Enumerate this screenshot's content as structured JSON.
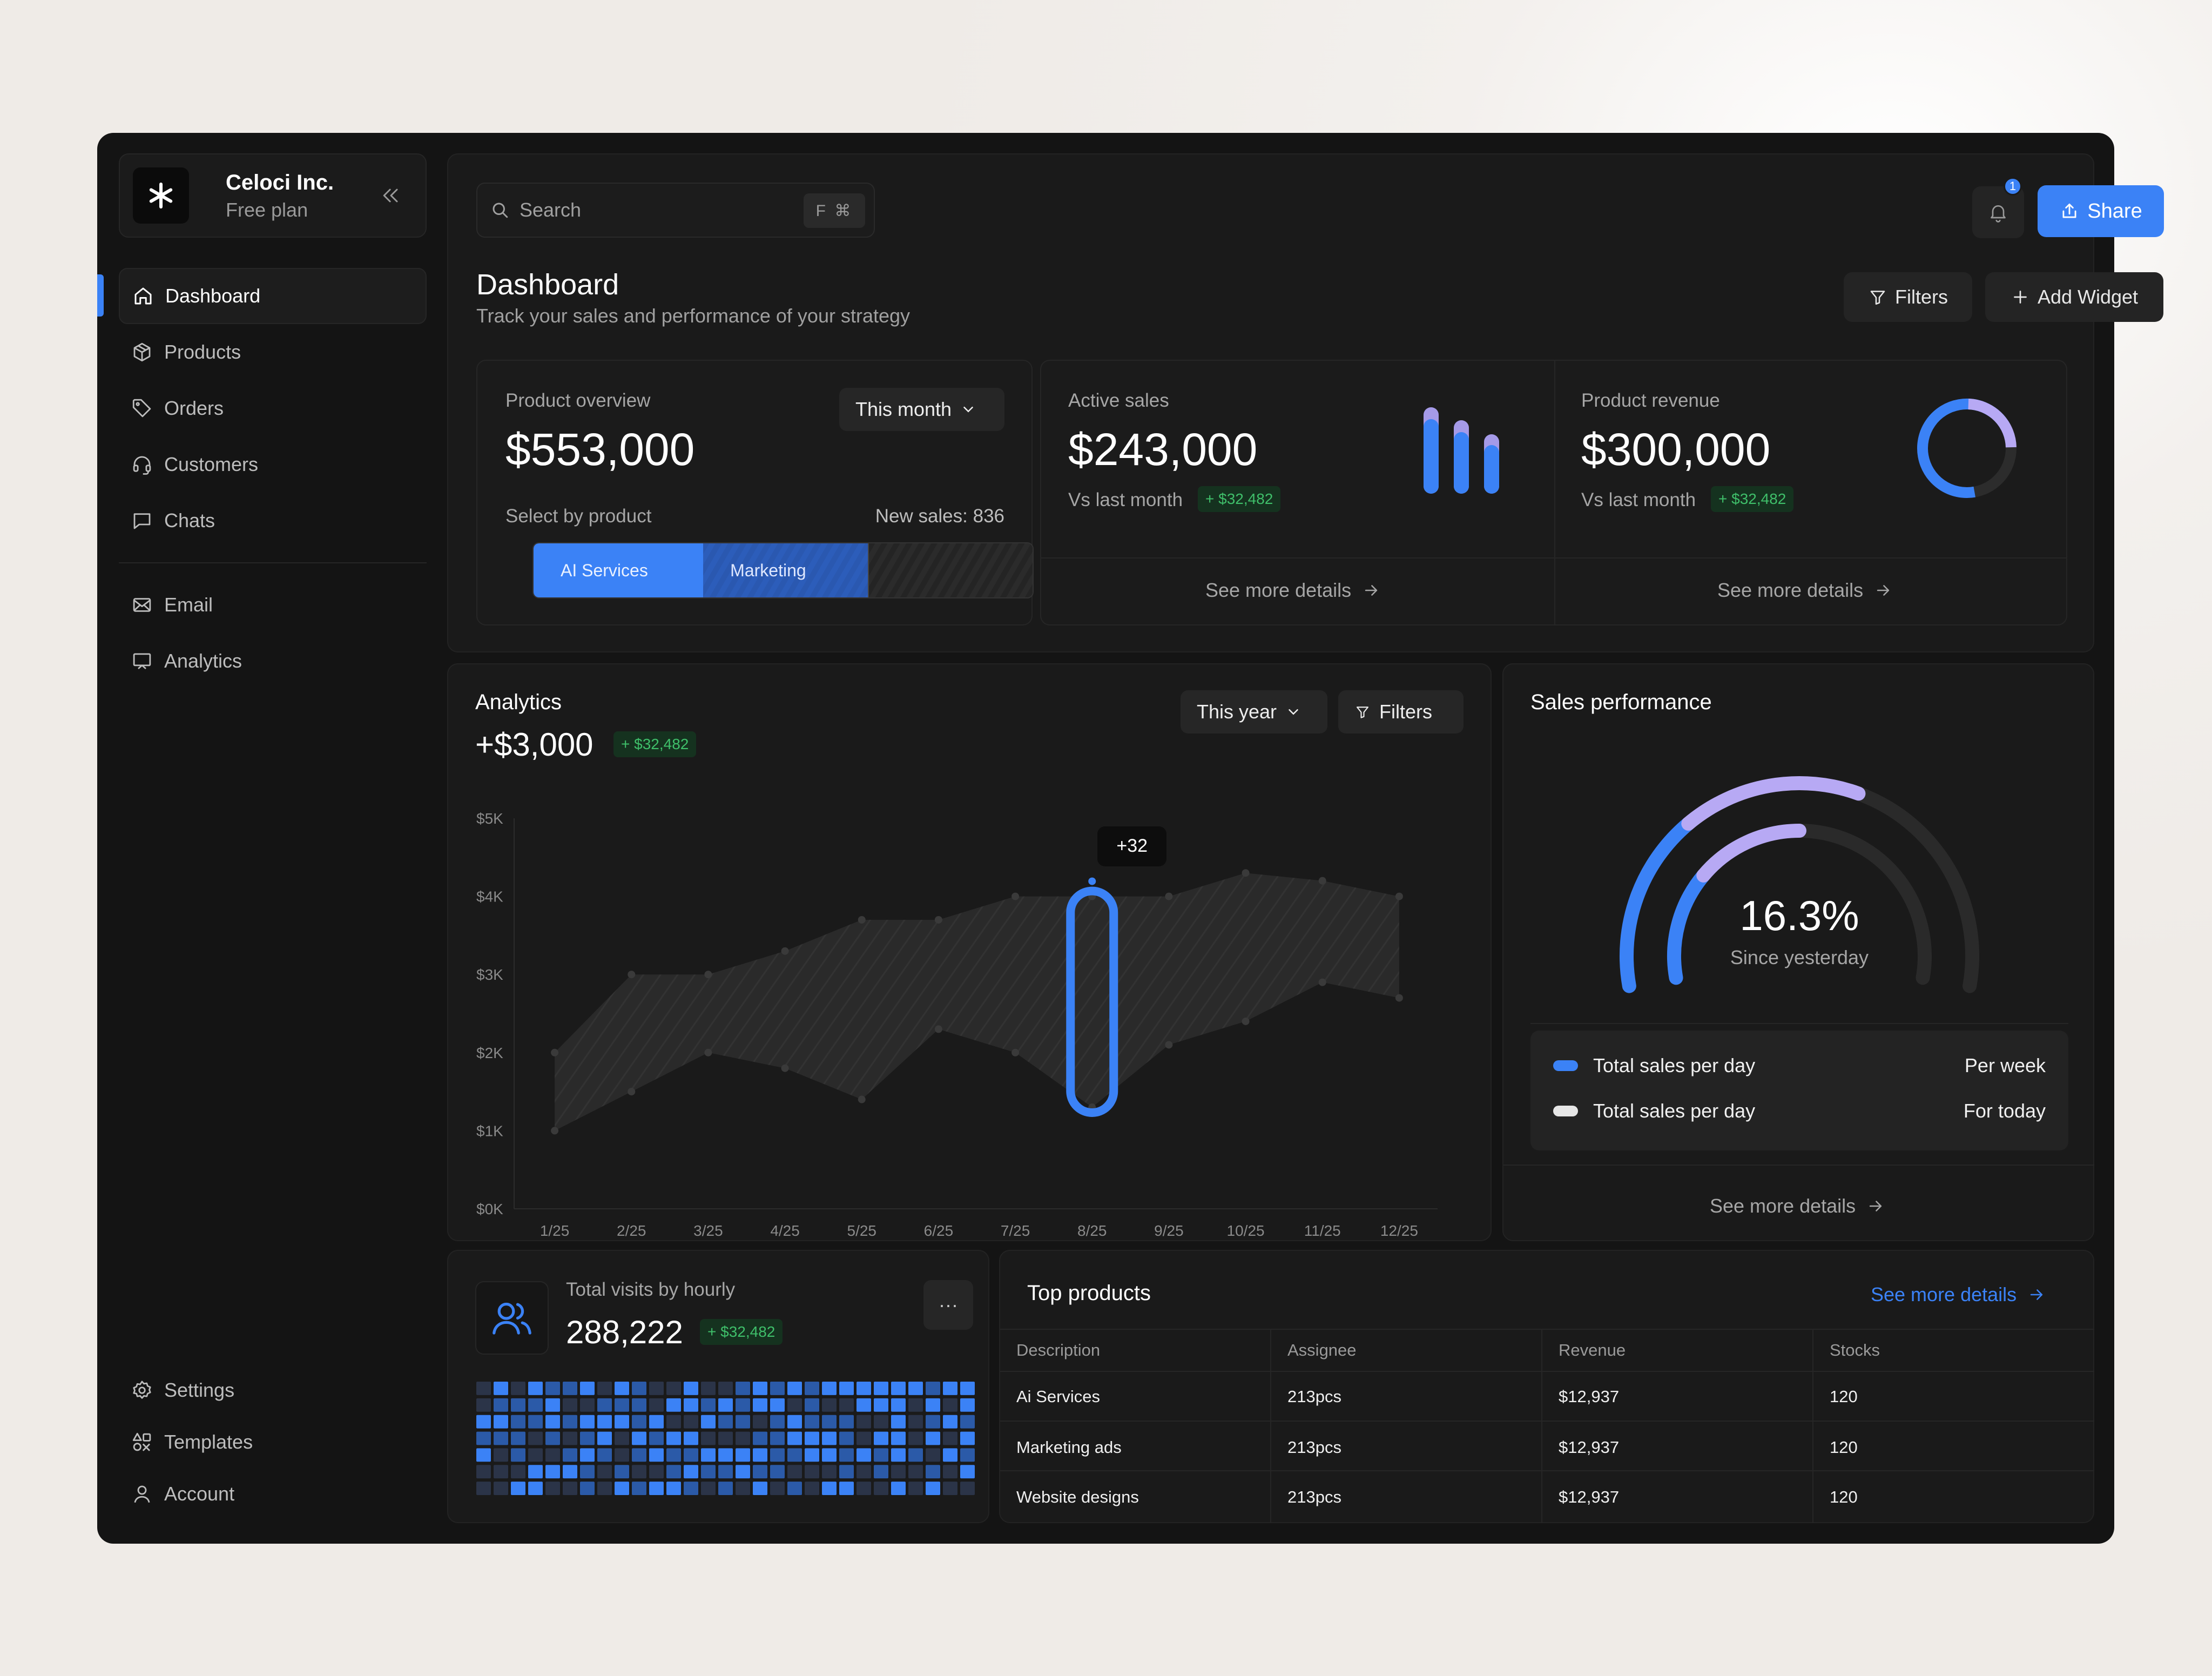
{
  "org": {
    "name": "Celoci Inc.",
    "plan": "Free plan"
  },
  "nav": {
    "primary": [
      {
        "label": "Dashboard",
        "icon": "home-icon",
        "active": true
      },
      {
        "label": "Products",
        "icon": "box-icon"
      },
      {
        "label": "Orders",
        "icon": "tag-icon"
      },
      {
        "label": "Customers",
        "icon": "headset-icon"
      },
      {
        "label": "Chats",
        "icon": "chat-icon"
      }
    ],
    "secondary": [
      {
        "label": "Email",
        "icon": "mail-icon"
      },
      {
        "label": "Analytics",
        "icon": "presentation-icon"
      }
    ],
    "bottom": [
      {
        "label": "Settings",
        "icon": "gear-icon"
      },
      {
        "label": "Templates",
        "icon": "shapes-icon"
      },
      {
        "label": "Account",
        "icon": "user-icon"
      }
    ]
  },
  "header": {
    "search_placeholder": "Search",
    "search_shortcut": "F ⌘",
    "notification_count": "1",
    "share_label": "Share",
    "title": "Dashboard",
    "subtitle": "Track your sales and performance of your strategy",
    "filters_label": "Filters",
    "add_widget_label": "Add Widget"
  },
  "overview": {
    "label": "Product overview",
    "period": "This month",
    "value": "$553,000",
    "select_label": "Select by product",
    "new_sales": "New sales: 836",
    "segments": [
      {
        "label": "AI Services",
        "share": 0.34
      },
      {
        "label": "Marketing",
        "share": 0.33
      }
    ]
  },
  "active_sales": {
    "label": "Active sales",
    "value": "$243,000",
    "compare": "Vs last month",
    "delta": "+ $32,482",
    "see_more": "See more details"
  },
  "revenue": {
    "label": "Product revenue",
    "value": "$300,000",
    "compare": "Vs last month",
    "delta": "+ $32,482",
    "see_more": "See more details"
  },
  "analytics": {
    "title": "Analytics",
    "value": "+$3,000",
    "delta": "+ $32,482",
    "period": "This year",
    "filters_label": "Filters",
    "tooltip": "+32"
  },
  "chart_data": {
    "type": "area",
    "title": "Analytics",
    "x": [
      "1/25",
      "2/25",
      "3/25",
      "4/25",
      "5/25",
      "6/25",
      "7/25",
      "8/25",
      "9/25",
      "10/25",
      "11/25",
      "12/25"
    ],
    "y_ticks": [
      "$5K",
      "$4K",
      "$3K",
      "$2K",
      "$1K",
      "$0K"
    ],
    "ylim": [
      0,
      5000
    ],
    "series": [
      {
        "name": "",
        "values": [
          2000,
          3000,
          3000,
          3300,
          3700,
          3700,
          4000,
          4000,
          4000,
          4300,
          4200,
          4000
        ]
      },
      {
        "name": "",
        "values": [
          1000,
          1500,
          2000,
          1800,
          1400,
          2300,
          2000,
          1300,
          2100,
          2400,
          2900,
          2700
        ]
      }
    ],
    "highlight_index": 7,
    "grid": false
  },
  "sales_performance": {
    "title": "Sales performance",
    "value": "16.3%",
    "caption": "Since yesterday",
    "outer_fill": 0.6,
    "inner_fill": 0.5,
    "legend": [
      {
        "label": "Total sales per day",
        "right": "Per week",
        "color": "#3b82f6"
      },
      {
        "label": "Total sales per day",
        "right": "For today",
        "color": "#e6e6e6"
      }
    ],
    "see_more": "See more details"
  },
  "visits": {
    "label": "Total visits by hourly",
    "value": "288,222",
    "delta": "+ $32,482",
    "menu": "···"
  },
  "top_products": {
    "title": "Top products",
    "see_more": "See more details",
    "columns": [
      "Description",
      "Assignee",
      "Revenue",
      "Stocks"
    ],
    "rows": [
      [
        "Ai Services",
        "213pcs",
        "$12,937",
        "120"
      ],
      [
        "Marketing ads",
        "213pcs",
        "$12,937",
        "120"
      ],
      [
        "Website designs",
        "213pcs",
        "$12,937",
        "120"
      ]
    ]
  },
  "colors": {
    "accent": "#3b82f6",
    "lavender": "#b7a9f4",
    "positive": "#3fbf6a"
  }
}
